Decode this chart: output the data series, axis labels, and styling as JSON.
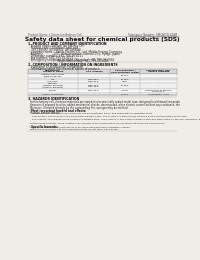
{
  "bg_color": "#f0ede8",
  "header_left": "Product Name: Lithium Ion Battery Cell",
  "header_right_line1": "Substance Number: SML9030-220M",
  "header_right_line2": "Established / Revision: Dec.1.2010",
  "title": "Safety data sheet for chemical products (SDS)",
  "section1_title": "1. PRODUCT AND COMPANY IDENTIFICATION",
  "section1_lines": [
    "· Product name: Lithium Ion Battery Cell",
    "· Product code: Cylindrical-type cell",
    "   (SY-18650U, SY-18650L, SY-18650A)",
    "· Company name:   Sanyo Electric Co., Ltd. Mobile Energy Company",
    "· Address:            2001, Kamimunakan, Sumoto-City, Hyogo, Japan",
    "· Telephone number: +81-799-26-4111",
    "· Fax number: +81-799-26-4121",
    "· Emergency telephone number (Weekday) +81-799-26-2662",
    "                                (Night and holiday) +81-799-26-2101"
  ],
  "section2_title": "2. COMPOSITION / INFORMATION ON INGREDIENTS",
  "section2_intro": "· Substance or preparation: Preparation",
  "section2_sub": "  Information about the chemical nature of product:",
  "table_col_names": [
    "Component\nchemical name",
    "CAS number",
    "Concentration /\nConcentration range",
    "Classification and\nhazard labeling"
  ],
  "table_rows": [
    [
      "Lithium cobalt oxide\n(LiMn-Co-Ni-Ox)",
      "-",
      "30-60%",
      "-"
    ],
    [
      "Iron",
      "7439-89-6",
      "15-25%",
      "-"
    ],
    [
      "Aluminum",
      "7429-90-5",
      "2-8%",
      "-"
    ],
    [
      "Graphite\n(Natural graphite)\n(Artificial graphite)",
      "7782-42-5\n7782-42-5",
      "10-25%",
      "-"
    ],
    [
      "Copper",
      "7440-50-8",
      "5-10%",
      "Sensitization of the skin\ngroup No.2"
    ],
    [
      "Organic electrolyte",
      "-",
      "10-20%",
      "Inflammable liquid"
    ]
  ],
  "section3_title": "3. HAZARDS IDENTIFICATION",
  "section3_paras": [
    "For the battery cell, chemical materials are stored in a hermetically sealed metal case, designed to withstand temperatures during battery-service-conditions during normal use. As a result, during normal use, there is no physical danger of ignition or explosion and there is no danger of hazardous materials leakage.",
    "However, if exposed to a fire, added mechanical shocks, decomposed, when electric current without any resistance, the gas bubble cannot be operated. The battery cell case will be breached at the extremes. Hazardous materials may be released.",
    "Moreover, if heated strongly by the surrounding fire, soot gas may be emitted."
  ],
  "bullet_important": "· Most important hazard and effects:",
  "human_health": "Human health effects:",
  "health_items": [
    "Inhalation: The release of the electrolyte has an anesthetic action and stimulates a respiratory tract.",
    "Skin contact: The release of the electrolyte irritates a skin. The electrolyte skin contact causes a sore and stimulation on the skin.",
    "Eye contact: The release of the electrolyte irritates eyes. The electrolyte eye contact causes a sore and stimulation on the eye. Especially, a substance that causes a strong inflammation of the eyes is contained."
  ],
  "env_effects": "Environmental effects: Since a battery cell remains in the environment, do not throw out it into the environment.",
  "specific_label": "· Specific hazards:",
  "specific_items": [
    "If the electrolyte contacts with water, it will generate deleterious hydrogen fluoride.",
    "Since the used electrolyte is inflammable liquid, do not bring close to fire."
  ]
}
